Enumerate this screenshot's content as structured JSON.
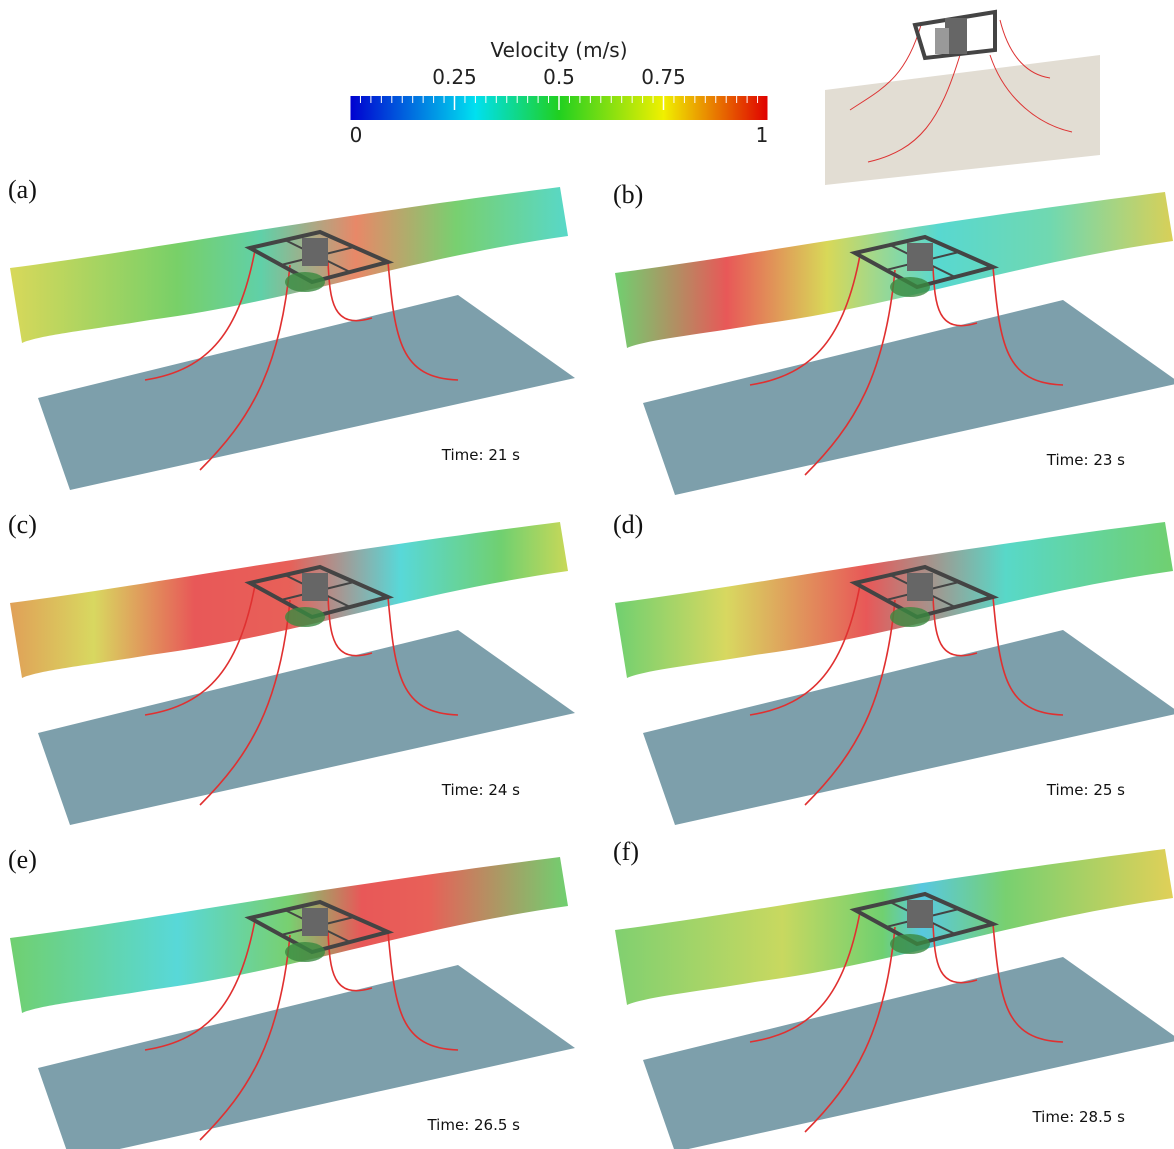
{
  "colorbar": {
    "title": "Velocity (m/s)",
    "range": [
      0,
      1
    ],
    "ticks": [
      0.25,
      0.5,
      0.75
    ],
    "end_labels": [
      0,
      1
    ]
  },
  "panels": [
    {
      "label": "(a)",
      "time": "Time: 21 s"
    },
    {
      "label": "(b)",
      "time": "Time: 23 s"
    },
    {
      "label": "(c)",
      "time": "Time: 24 s"
    },
    {
      "label": "(d)",
      "time": "Time: 25 s"
    },
    {
      "label": "(e)",
      "time": "Time: 26.5 s"
    },
    {
      "label": "(f)",
      "time": "Time: 28.5 s"
    }
  ]
}
